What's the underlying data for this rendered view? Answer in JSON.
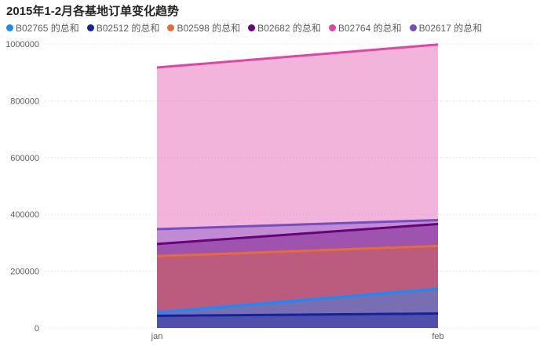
{
  "chart_data": {
    "type": "area",
    "title": "2015年1-2月各基地订单变化趋势",
    "categories": [
      "jan",
      "feb"
    ],
    "ylim": [
      0,
      1000000
    ],
    "yticks": [
      0,
      200000,
      400000,
      600000,
      800000,
      1000000
    ],
    "ytick_labels": [
      "0",
      "200000",
      "400000",
      "600000",
      "800000",
      "1000000"
    ],
    "grid": true,
    "legend_position": "top-left",
    "series": [
      {
        "name": "B02765 的总和",
        "color": "#118DFF",
        "values": [
          55000,
          138000
        ]
      },
      {
        "name": "B02512 的总和",
        "color": "#12239E",
        "values": [
          43000,
          51000
        ]
      },
      {
        "name": "B02598 的总和",
        "color": "#E66C37",
        "values": [
          253000,
          289000
        ]
      },
      {
        "name": "B02682 的总和",
        "color": "#6B007B",
        "values": [
          296000,
          366000
        ]
      },
      {
        "name": "B02764 的总和",
        "color": "#E044A7",
        "values": [
          917000,
          998000
        ]
      },
      {
        "name": "B02617 的总和",
        "color": "#744EC2",
        "values": [
          348000,
          380000
        ]
      }
    ]
  }
}
